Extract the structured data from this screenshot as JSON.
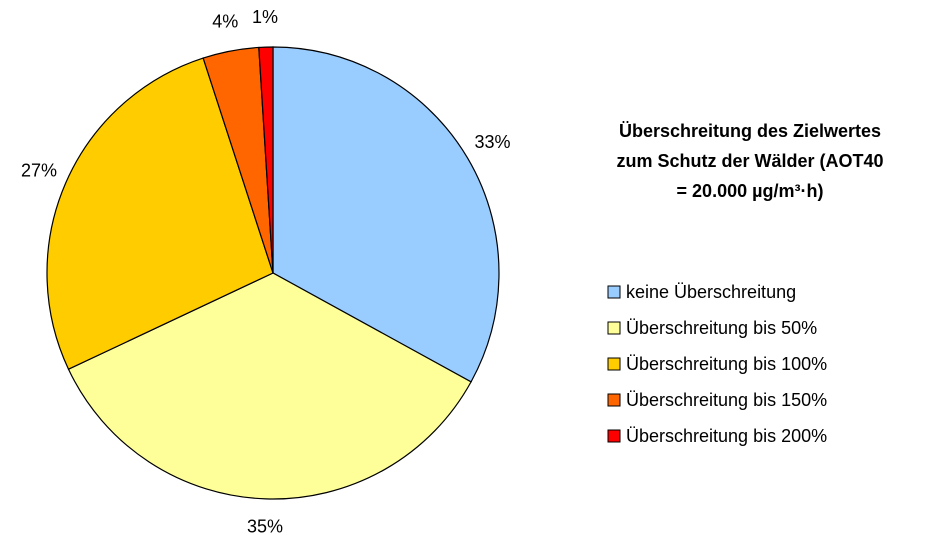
{
  "chart_data": {
    "type": "pie",
    "title": "Überschreitung des Zielwertes zum Schutz der Wälder (AOT40 = 20.000 µg/m³·h)",
    "categories": [
      "keine Überschreitung",
      "Überschreitung bis 50%",
      "Überschreitung bis 100%",
      "Überschreitung bis 150%",
      "Überschreitung bis 200%"
    ],
    "values": [
      33,
      35,
      27,
      4,
      1
    ],
    "value_labels": [
      "33%",
      "35%",
      "27%",
      "4%",
      "1%"
    ],
    "colors": [
      "#99ccff",
      "#ffff99",
      "#ffcc00",
      "#ff6600",
      "#ff0000"
    ],
    "legend": "right"
  }
}
